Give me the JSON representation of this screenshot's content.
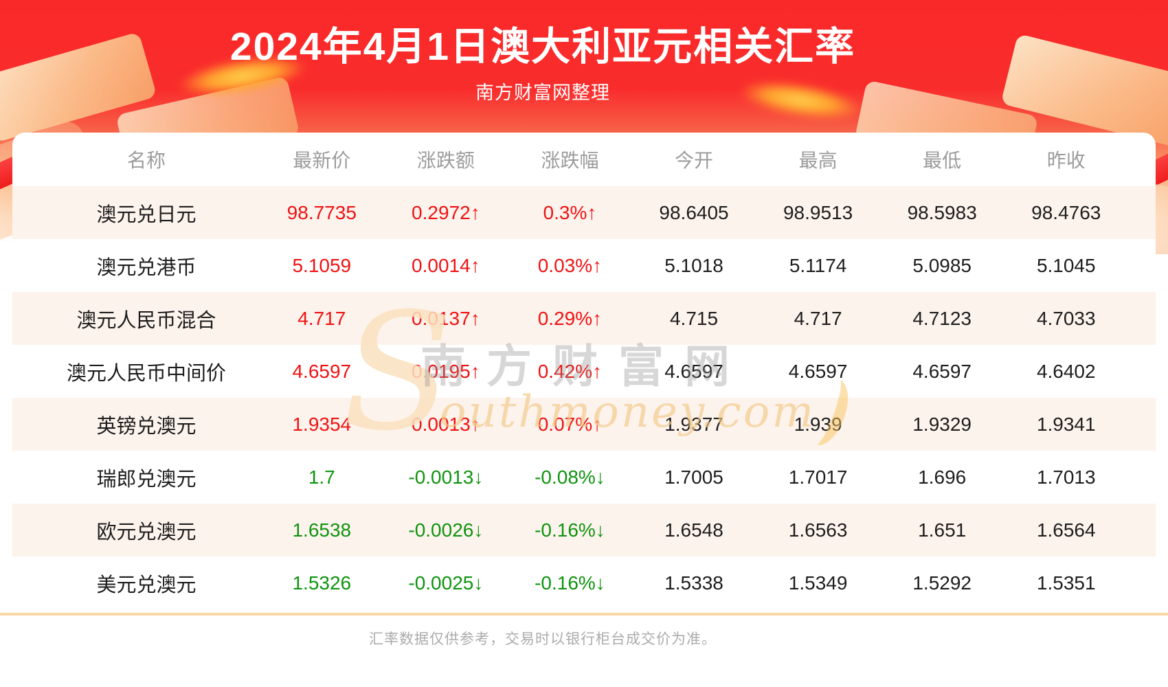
{
  "header": {
    "title": "2024年4月1日澳大利亚元相关汇率",
    "subtitle": "南方财富网整理"
  },
  "watermark": {
    "initial": "S",
    "cn": "南方财富网",
    "en": "outhmoney.com"
  },
  "chart_data": {
    "type": "table",
    "title": "2024年4月1日澳大利亚元相关汇率",
    "columns": [
      "名称",
      "最新价",
      "涨跌额",
      "涨跌幅",
      "今开",
      "最高",
      "最低",
      "昨收"
    ],
    "rows": [
      {
        "name": "澳元兑日元",
        "values": [
          "98.7735",
          "0.2972↑",
          "0.3%↑",
          "98.6405",
          "98.9513",
          "98.5983",
          "98.4763"
        ],
        "trend": "up"
      },
      {
        "name": "澳元兑港币",
        "values": [
          "5.1059",
          "0.0014↑",
          "0.03%↑",
          "5.1018",
          "5.1174",
          "5.0985",
          "5.1045"
        ],
        "trend": "up"
      },
      {
        "name": "澳元人民币混合",
        "values": [
          "4.717",
          "0.0137↑",
          "0.29%↑",
          "4.715",
          "4.717",
          "4.7123",
          "4.7033"
        ],
        "trend": "up"
      },
      {
        "name": "澳元人民币中间价",
        "values": [
          "4.6597",
          "0.0195↑",
          "0.42%↑",
          "4.6597",
          "4.6597",
          "4.6597",
          "4.6402"
        ],
        "trend": "up"
      },
      {
        "name": "英镑兑澳元",
        "values": [
          "1.9354",
          "0.0013↑",
          "0.07%↑",
          "1.9377",
          "1.939",
          "1.9329",
          "1.9341"
        ],
        "trend": "up"
      },
      {
        "name": "瑞郎兑澳元",
        "values": [
          "1.7",
          "-0.0013↓",
          "-0.08%↓",
          "1.7005",
          "1.7017",
          "1.696",
          "1.7013"
        ],
        "trend": "down"
      },
      {
        "name": "欧元兑澳元",
        "values": [
          "1.6538",
          "-0.0026↓",
          "-0.16%↓",
          "1.6548",
          "1.6563",
          "1.651",
          "1.6564"
        ],
        "trend": "down"
      },
      {
        "name": "美元兑澳元",
        "values": [
          "1.5326",
          "-0.0025↓",
          "-0.16%↓",
          "1.5338",
          "1.5349",
          "1.5292",
          "1.5351"
        ],
        "trend": "down"
      }
    ]
  },
  "footer": {
    "disclaimer": "汇率数据仅供参考，交易时以银行柜台成交价为准。"
  },
  "colors": {
    "banner_red": "#f92c2c",
    "up_red": "#f01212",
    "down_green": "#0e940e",
    "row_alt_pink": "#fdf3ed",
    "divider_tan": "#f8d7a4"
  }
}
